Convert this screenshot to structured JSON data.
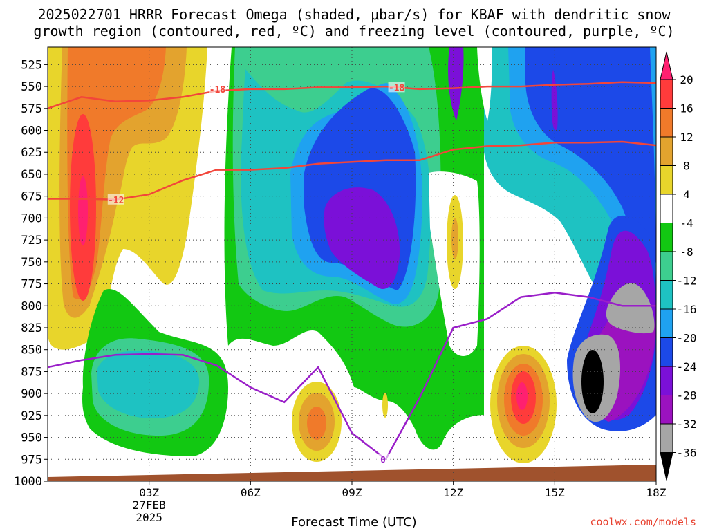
{
  "chart_data": {
    "type": "heatmap",
    "title_line1": "2025022701 HRRR Forecast Omega (shaded, μbar/s) for KBAF with dendritic snow",
    "title_line2": "growth region (contoured, red, ºC) and freezing level (contoured, purple, ºC)",
    "xlabel": "Forecast Time (UTC)",
    "x_ticks": [
      "03Z",
      "06Z",
      "09Z",
      "12Z",
      "15Z",
      "18Z"
    ],
    "x_first_tick_sublabels": [
      "27FEB",
      "2025"
    ],
    "ylabel": "",
    "y_ticks": [
      525,
      550,
      575,
      600,
      625,
      650,
      675,
      700,
      725,
      750,
      775,
      800,
      825,
      850,
      875,
      900,
      925,
      950,
      975,
      1000
    ],
    "ylim": [
      1000,
      505
    ],
    "xlim_hours": [
      0,
      18
    ],
    "colorbar_labels": [
      "20",
      "16",
      "12",
      "8",
      "4",
      "-4",
      "-8",
      "-12",
      "-16",
      "-20",
      "-24",
      "-28",
      "-32",
      "-36"
    ],
    "colorbar_colors": [
      "#ff2070",
      "#ff3b3b",
      "#f07a2a",
      "#e3a32e",
      "#e8d52b",
      "#ffffff",
      "#12c812",
      "#3dce8f",
      "#1ec2c2",
      "#1fa2f0",
      "#1c49e8",
      "#7b10d8",
      "#9b12bf",
      "#a6a6a6",
      "#000000"
    ],
    "contour_labels": [
      "-18",
      "-18",
      "-12",
      "0"
    ],
    "series": [
      {
        "name": "-18",
        "x": [
          0,
          1,
          2,
          3,
          4,
          5,
          6,
          7,
          8,
          9,
          10,
          11,
          12,
          13,
          14,
          15,
          16,
          17,
          18
        ],
        "y": [
          575,
          562,
          567,
          566,
          562,
          555,
          553,
          553,
          551,
          551,
          550,
          553,
          552,
          550,
          550,
          548,
          547,
          545,
          546
        ]
      },
      {
        "name": "-12",
        "x": [
          0,
          1,
          2,
          3,
          4,
          5,
          6,
          7,
          8,
          9,
          10,
          11,
          12,
          13,
          14,
          15,
          16,
          17,
          18
        ],
        "y": [
          678,
          678,
          679,
          673,
          657,
          645,
          645,
          643,
          638,
          636,
          634,
          634,
          622,
          618,
          617,
          614,
          614,
          613,
          617
        ]
      },
      {
        "name": "0",
        "x": [
          0,
          1,
          2,
          3,
          4,
          5,
          6,
          7,
          8,
          9,
          10,
          11,
          12,
          13,
          14,
          15,
          16,
          17,
          18
        ],
        "y": [
          870,
          862,
          856,
          855,
          856,
          868,
          893,
          910,
          870,
          945,
          975,
          905,
          825,
          815,
          790,
          785,
          790,
          800,
          800
        ]
      }
    ],
    "grid": true,
    "credit": "coolwx.com/models"
  }
}
